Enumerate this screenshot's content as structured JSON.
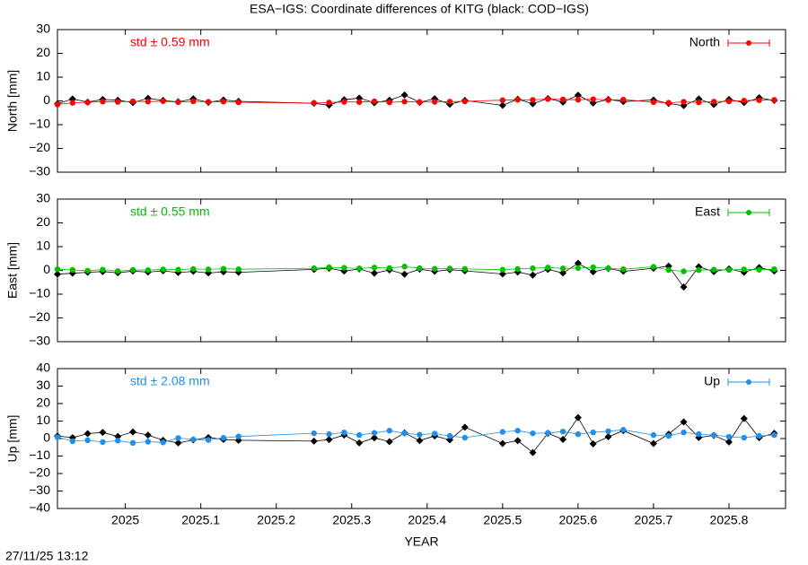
{
  "title": "ESA−IGS: Coordinate differences of KITG (black: COD−IGS)",
  "footer": "27/11/25 13:12",
  "chart_data": [
    {
      "type": "line",
      "ylabel": "North [mm]",
      "annotation": "std ± 0.59 mm",
      "legend": "upper right",
      "xlim": [
        2024.91,
        2025.875
      ],
      "xticks": [
        2025,
        2025.1,
        2025.2,
        2025.3,
        2025.4,
        2025.5,
        2025.6,
        2025.7,
        2025.8
      ],
      "ylim": [
        -30,
        30
      ],
      "yticks": [
        {
          "value": -30,
          "label": "−30"
        },
        {
          "value": -20,
          "label": "−20"
        },
        {
          "value": -10,
          "label": "−10"
        },
        0,
        10,
        20,
        30
      ],
      "x": [
        2024.91,
        2024.93,
        2024.95,
        2024.97,
        2024.99,
        2025.01,
        2025.03,
        2025.05,
        2025.07,
        2025.09,
        2025.11,
        2025.13,
        2025.15,
        2025.25,
        2025.27,
        2025.29,
        2025.31,
        2025.33,
        2025.35,
        2025.37,
        2025.39,
        2025.41,
        2025.43,
        2025.45,
        2025.5,
        2025.52,
        2025.54,
        2025.56,
        2025.58,
        2025.6,
        2025.62,
        2025.64,
        2025.66,
        2025.7,
        2025.72,
        2025.74,
        2025.76,
        2025.78,
        2025.8,
        2025.82,
        2025.84,
        2025.86
      ],
      "series": [
        {
          "color": "#000000",
          "values": [
            -1.2,
            0.8,
            -0.5,
            0.6,
            0.3,
            -0.7,
            1.1,
            0.2,
            -0.4,
            0.9,
            -0.6,
            0.4,
            -0.2,
            -1.0,
            -1.8,
            0.5,
            1.2,
            -0.8,
            0.3,
            2.5,
            -0.6,
            0.9,
            -1.4,
            0.2,
            -1.9,
            0.7,
            -1.2,
            1.0,
            -0.5,
            2.4,
            -0.9,
            0.6,
            -0.3,
            0.4,
            -1.1,
            -2.0,
            0.8,
            -1.5,
            0.6,
            -0.7,
            1.3,
            0.2
          ]
        },
        {
          "name": "North",
          "color": "#ff0000",
          "values": [
            -1.5,
            -0.8,
            -0.6,
            -0.3,
            -0.4,
            -0.2,
            -0.3,
            -0.1,
            -0.5,
            -0.2,
            -0.4,
            -0.3,
            -0.6,
            -0.9,
            -0.7,
            -0.4,
            -0.5,
            -0.2,
            -0.6,
            -0.3,
            -0.5,
            -0.4,
            -0.3,
            -0.2,
            0.3,
            0.5,
            0.4,
            0.8,
            0.6,
            0.5,
            0.7,
            0.4,
            0.5,
            -0.5,
            -0.8,
            -0.4,
            -0.6,
            -0.3,
            -0.2,
            0.1,
            0.3,
            0.4
          ]
        }
      ]
    },
    {
      "type": "line",
      "ylabel": "East [mm]",
      "annotation": "std ± 0.55 mm",
      "legend": "upper right",
      "xlim": [
        2024.91,
        2025.875
      ],
      "xticks": [
        2025,
        2025.1,
        2025.2,
        2025.3,
        2025.4,
        2025.5,
        2025.6,
        2025.7,
        2025.8
      ],
      "ylim": [
        -30,
        30
      ],
      "yticks": [
        {
          "value": -30,
          "label": "−30"
        },
        {
          "value": -20,
          "label": "−20"
        },
        {
          "value": -10,
          "label": "−10"
        },
        0,
        10,
        20,
        30
      ],
      "x": [
        2024.91,
        2024.93,
        2024.95,
        2024.97,
        2024.99,
        2025.01,
        2025.03,
        2025.05,
        2025.07,
        2025.09,
        2025.11,
        2025.13,
        2025.15,
        2025.25,
        2025.27,
        2025.29,
        2025.31,
        2025.33,
        2025.35,
        2025.37,
        2025.39,
        2025.41,
        2025.43,
        2025.45,
        2025.5,
        2025.52,
        2025.54,
        2025.56,
        2025.58,
        2025.6,
        2025.62,
        2025.64,
        2025.66,
        2025.7,
        2025.72,
        2025.74,
        2025.76,
        2025.78,
        2025.8,
        2025.82,
        2025.84,
        2025.86
      ],
      "series": [
        {
          "color": "#000000",
          "values": [
            -1.6,
            -1.2,
            -0.8,
            -0.5,
            -1.0,
            -0.3,
            -0.7,
            -0.2,
            -0.9,
            -0.4,
            -1.1,
            -0.6,
            -0.8,
            0.4,
            0.9,
            -0.3,
            0.6,
            -1.2,
            0.2,
            -1.6,
            0.5,
            -0.4,
            0.3,
            -0.2,
            -1.5,
            -0.7,
            -2.0,
            0.4,
            -1.1,
            3.0,
            -0.6,
            0.8,
            -0.4,
            0.9,
            1.8,
            -7.0,
            1.5,
            -0.5,
            0.6,
            -0.8,
            1.2,
            -0.3
          ]
        },
        {
          "name": "East",
          "color": "#00c000",
          "values": [
            0.5,
            0.2,
            -0.1,
            0.3,
            -0.3,
            0.2,
            0.1,
            0.4,
            0.3,
            0.6,
            0.4,
            0.7,
            0.5,
            0.9,
            1.3,
            1.1,
            0.8,
            1.2,
            1.0,
            1.6,
            0.9,
            0.7,
            0.8,
            0.6,
            0.3,
            0.6,
            0.9,
            1.2,
            0.8,
            1.0,
            1.3,
            0.9,
            0.5,
            1.5,
            0.2,
            -0.4,
            0.1,
            0.3,
            0.2,
            0.4,
            0.3,
            0.5
          ]
        }
      ]
    },
    {
      "type": "line",
      "ylabel": "Up [mm]",
      "xlabel": "YEAR",
      "annotation": "std ± 2.08 mm",
      "legend": "upper right",
      "xlim": [
        2024.91,
        2025.875
      ],
      "xticks": [
        2025,
        2025.1,
        2025.2,
        2025.3,
        2025.4,
        2025.5,
        2025.6,
        2025.7,
        2025.8
      ],
      "ylim": [
        -40,
        40
      ],
      "yticks": [
        {
          "value": -40,
          "label": "−40"
        },
        {
          "value": -30,
          "label": "−30"
        },
        {
          "value": -20,
          "label": "−20"
        },
        {
          "value": -10,
          "label": "−10"
        },
        0,
        10,
        20,
        30,
        40
      ],
      "x": [
        2024.91,
        2024.93,
        2024.95,
        2024.97,
        2024.99,
        2025.01,
        2025.03,
        2025.05,
        2025.07,
        2025.09,
        2025.11,
        2025.13,
        2025.15,
        2025.25,
        2025.27,
        2025.29,
        2025.31,
        2025.33,
        2025.35,
        2025.37,
        2025.39,
        2025.41,
        2025.43,
        2025.45,
        2025.5,
        2025.52,
        2025.54,
        2025.56,
        2025.58,
        2025.6,
        2025.62,
        2025.64,
        2025.66,
        2025.7,
        2025.72,
        2025.74,
        2025.76,
        2025.78,
        2025.8,
        2025.82,
        2025.84,
        2025.86
      ],
      "series": [
        {
          "color": "#000000",
          "values": [
            1.5,
            0.5,
            2.8,
            3.5,
            1.2,
            3.8,
            2.0,
            -1.0,
            -2.5,
            -0.8,
            0.6,
            -0.5,
            -1.0,
            -1.5,
            -0.6,
            2.0,
            -2.5,
            0.4,
            -1.8,
            3.2,
            -1.2,
            1.5,
            -0.8,
            6.5,
            -2.8,
            -1.2,
            -8.0,
            3.0,
            -0.5,
            12.0,
            -3.0,
            1.0,
            4.5,
            -2.8,
            2.5,
            9.5,
            0.6,
            1.8,
            -2.0,
            11.5,
            0.5,
            3.0
          ]
        },
        {
          "name": "Up",
          "color": "#1e8fea",
          "values": [
            0.8,
            -1.5,
            -1.0,
            -2.0,
            -1.2,
            -2.5,
            -1.8,
            -2.2,
            0.3,
            -0.5,
            -0.8,
            0.4,
            1.2,
            3.0,
            2.5,
            3.5,
            2.0,
            3.2,
            4.5,
            3.0,
            2.2,
            2.8,
            1.5,
            0.5,
            3.8,
            4.5,
            3.0,
            3.2,
            4.0,
            2.5,
            3.5,
            4.2,
            5.0,
            2.0,
            1.5,
            3.5,
            2.5,
            2.0,
            1.0,
            0.5,
            1.5,
            2.0
          ]
        }
      ]
    }
  ]
}
